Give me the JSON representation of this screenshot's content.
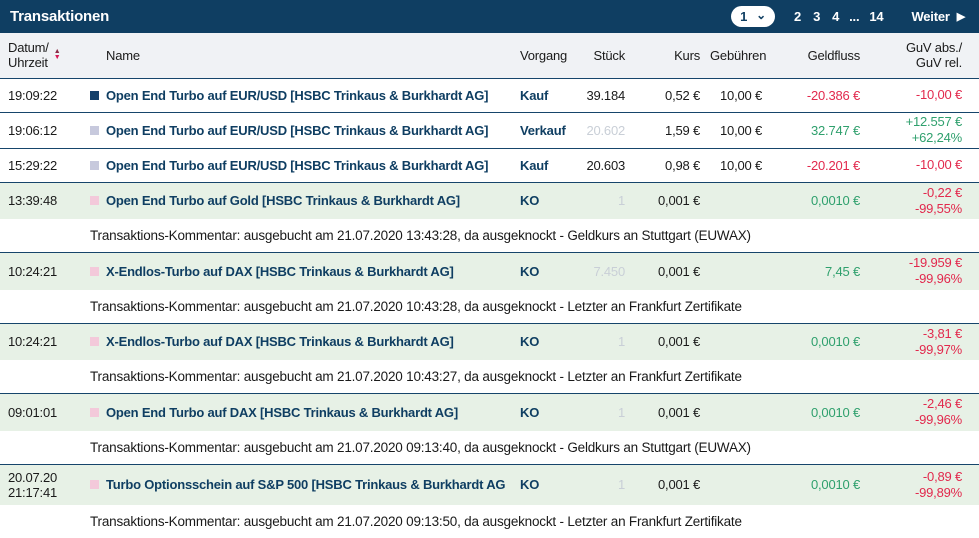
{
  "colors": {
    "header_bar": "#0f3e62",
    "link_navy": "#0f3e62",
    "negative": "#e2294d",
    "positive": "#2fa06d",
    "row_highlight_bg": "#e7f1e6",
    "header_row_bg": "#f0f2f5",
    "icon_navy": "#14406a",
    "icon_lavender": "#c7c9dd",
    "icon_pink": "#f3c9da",
    "sort_arrow_top": "#8a2c47",
    "sort_arrow_bottom": "#d61a56"
  },
  "icons": {
    "sort_up": "▲",
    "sort_down": "▼",
    "dropdown_chevron": "⌄",
    "next_arrow": "▶"
  },
  "header": {
    "title": "Transaktionen"
  },
  "pagination": {
    "current": "1",
    "pages": [
      "2",
      "3",
      "4",
      "...",
      "14"
    ],
    "next": "Weiter"
  },
  "columns": {
    "datum_line1": "Datum/",
    "datum_line2": "Uhrzeit",
    "name": "Name",
    "vorgang": "Vorgang",
    "stueck": "Stück",
    "kurs": "Kurs",
    "gebuehren": "Gebühren",
    "geldfluss": "Geldfluss",
    "guv_line1": "GuV abs./",
    "guv_line2": "GuV rel."
  },
  "rows": [
    {
      "date": "",
      "time": "19:09:22",
      "name": "Open End Turbo auf EUR/USD [HSBC Trinkaus & Burkhardt AG]",
      "vorgang": "Kauf",
      "stueck": "39.184",
      "kurs": "0,52 €",
      "gebuehren": "10,00 €",
      "geldfluss": "-20.386 €",
      "guv_abs": "-10,00 €",
      "guv_rel": "",
      "comment": ""
    },
    {
      "date": "",
      "time": "19:06:12",
      "name": "Open End Turbo auf EUR/USD [HSBC Trinkaus & Burkhardt AG]",
      "vorgang": "Verkauf",
      "stueck": "20.602",
      "kurs": "1,59 €",
      "gebuehren": "10,00 €",
      "geldfluss": "32.747 €",
      "guv_abs": "+12.557 €",
      "guv_rel": "+62,24%",
      "comment": ""
    },
    {
      "date": "",
      "time": "15:29:22",
      "name": "Open End Turbo auf EUR/USD [HSBC Trinkaus & Burkhardt AG]",
      "vorgang": "Kauf",
      "stueck": "20.603",
      "kurs": "0,98 €",
      "gebuehren": "10,00 €",
      "geldfluss": "-20.201 €",
      "guv_abs": "-10,00 €",
      "guv_rel": "",
      "comment": ""
    },
    {
      "date": "",
      "time": "13:39:48",
      "name": "Open End Turbo auf Gold [HSBC Trinkaus & Burkhardt AG]",
      "vorgang": "KO",
      "stueck": "1",
      "kurs": "0,001 €",
      "gebuehren": "",
      "geldfluss": "0,0010 €",
      "guv_abs": "-0,22 €",
      "guv_rel": "-99,55%",
      "comment": "Transaktions-Kommentar: ausgebucht am 21.07.2020 13:43:28, da ausgeknockt - Geldkurs an Stuttgart (EUWAX)"
    },
    {
      "date": "",
      "time": "10:24:21",
      "name": "X-Endlos-Turbo auf DAX [HSBC Trinkaus & Burkhardt AG]",
      "vorgang": "KO",
      "stueck": "7.450",
      "kurs": "0,001 €",
      "gebuehren": "",
      "geldfluss": "7,45 €",
      "guv_abs": "-19.959 €",
      "guv_rel": "-99,96%",
      "comment": "Transaktions-Kommentar: ausgebucht am 21.07.2020 10:43:28, da ausgeknockt - Letzter an Frankfurt Zertifikate"
    },
    {
      "date": "",
      "time": "10:24:21",
      "name": "X-Endlos-Turbo auf DAX [HSBC Trinkaus & Burkhardt AG]",
      "vorgang": "KO",
      "stueck": "1",
      "kurs": "0,001 €",
      "gebuehren": "",
      "geldfluss": "0,0010 €",
      "guv_abs": "-3,81 €",
      "guv_rel": "-99,97%",
      "comment": "Transaktions-Kommentar: ausgebucht am 21.07.2020 10:43:27, da ausgeknockt - Letzter an Frankfurt Zertifikate"
    },
    {
      "date": "",
      "time": "09:01:01",
      "name": "Open End Turbo auf DAX [HSBC Trinkaus & Burkhardt AG]",
      "vorgang": "KO",
      "stueck": "1",
      "kurs": "0,001 €",
      "gebuehren": "",
      "geldfluss": "0,0010 €",
      "guv_abs": "-2,46 €",
      "guv_rel": "-99,96%",
      "comment": "Transaktions-Kommentar: ausgebucht am 21.07.2020 09:13:40, da ausgeknockt - Geldkurs an Stuttgart (EUWAX)"
    },
    {
      "date": "20.07.20",
      "time": "21:17:41",
      "name": "Turbo Optionsschein auf S&P 500 [HSBC Trinkaus & Burkhardt AG]",
      "vorgang": "KO",
      "stueck": "1",
      "kurs": "0,001 €",
      "gebuehren": "",
      "geldfluss": "0,0010 €",
      "guv_abs": "-0,89 €",
      "guv_rel": "-99,89%",
      "comment": "Transaktions-Kommentar: ausgebucht am 21.07.2020 09:13:50, da ausgeknockt - Letzter an Frankfurt Zertifikate"
    }
  ]
}
